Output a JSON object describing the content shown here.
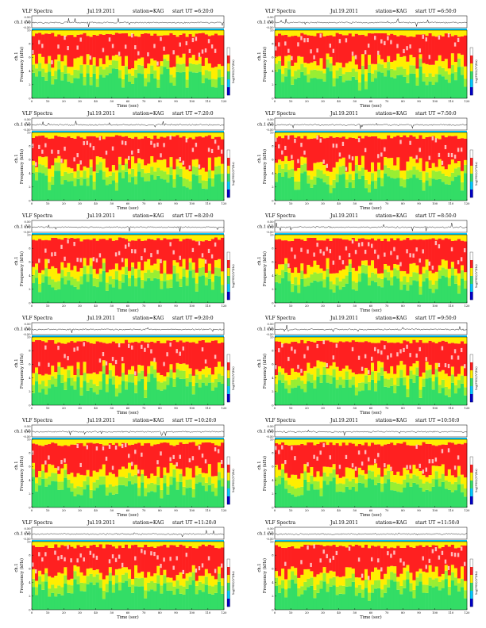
{
  "chart_data": [
    {
      "type": "heatmap",
      "title_left": "VLF Spectra",
      "date": "Jul.19.2011",
      "station": "station=KAG",
      "start_label": "start UT =6:20:0",
      "series_label": "ch.1 (V)",
      "ch_ticks": [
        "0.50",
        "0.00",
        "-0.50"
      ],
      "ylabel_top": "ch.1",
      "ylabel": "Frequency (kHz)",
      "xlabel": "Time (sec)",
      "colorbar_label": "log(PSD)(V²/Hz)",
      "xlim": [
        0,
        120
      ],
      "ylim": [
        0,
        10
      ],
      "x_ticks": [
        0,
        10,
        20,
        30,
        40,
        50,
        60,
        70,
        80,
        90,
        100,
        110,
        120
      ],
      "y_ticks": [
        0,
        2,
        4,
        6,
        8,
        10
      ]
    },
    {
      "type": "heatmap",
      "title_left": "VLF Spectra",
      "date": "Jul.19.2011",
      "station": "station=KAG",
      "start_label": "start UT =6:50:0",
      "series_label": "ch.1 (V)",
      "ch_ticks": [
        "0.50",
        "0.00",
        "-0.50"
      ],
      "ylabel_top": "ch.1",
      "ylabel": "Frequency (kHz)",
      "xlabel": "Time (sec)",
      "colorbar_label": "log(PSD)(V²/Hz)",
      "xlim": [
        0,
        120
      ],
      "ylim": [
        0,
        10
      ],
      "x_ticks": [
        0,
        10,
        20,
        30,
        40,
        50,
        60,
        70,
        80,
        90,
        100,
        110,
        120
      ],
      "y_ticks": [
        0,
        2,
        4,
        6,
        8,
        10
      ]
    },
    {
      "type": "heatmap",
      "title_left": "VLF Spectra",
      "date": "Jul.19.2011",
      "station": "station=KAG",
      "start_label": "start UT =7:20:0",
      "series_label": "ch.1 (V)",
      "ch_ticks": [
        "0.50",
        "0.00",
        "-0.50"
      ],
      "ylabel_top": "ch.1",
      "ylabel": "Frequency (kHz)",
      "xlabel": "Time (sec)",
      "colorbar_label": "log(PSD)(V²/Hz)",
      "xlim": [
        0,
        120
      ],
      "ylim": [
        0,
        10
      ],
      "x_ticks": [
        0,
        10,
        20,
        30,
        40,
        50,
        60,
        70,
        80,
        90,
        100,
        110,
        120
      ],
      "y_ticks": [
        0,
        2,
        4,
        6,
        8,
        10
      ]
    },
    {
      "type": "heatmap",
      "title_left": "VLF Spectra",
      "date": "Jul.19.2011",
      "station": "station=KAG",
      "start_label": "start UT =7:50:0",
      "series_label": "ch.1 (V)",
      "ch_ticks": [
        "0.50",
        "0.00",
        "-0.50"
      ],
      "ylabel_top": "ch.1",
      "ylabel": "Frequency (kHz)",
      "xlabel": "Time (sec)",
      "colorbar_label": "log(PSD)(V²/Hz)",
      "xlim": [
        0,
        120
      ],
      "ylim": [
        0,
        10
      ],
      "x_ticks": [
        0,
        10,
        20,
        30,
        40,
        50,
        60,
        70,
        80,
        90,
        100,
        110,
        120
      ],
      "y_ticks": [
        0,
        2,
        4,
        6,
        8,
        10
      ]
    },
    {
      "type": "heatmap",
      "title_left": "VLF Spectra",
      "date": "Jul.19.2011",
      "station": "station=KAG",
      "start_label": "start UT =8:20:0",
      "series_label": "ch.1 (V)",
      "ch_ticks": [
        "0.50",
        "0.00",
        "-0.50"
      ],
      "ylabel_top": "ch.1",
      "ylabel": "Frequency (kHz)",
      "xlabel": "Time (sec)",
      "colorbar_label": "log(PSD)(V²/Hz)",
      "xlim": [
        0,
        120
      ],
      "ylim": [
        0,
        10
      ],
      "x_ticks": [
        0,
        10,
        20,
        30,
        40,
        50,
        60,
        70,
        80,
        90,
        100,
        110,
        120
      ],
      "y_ticks": [
        0,
        2,
        4,
        6,
        8,
        10
      ]
    },
    {
      "type": "heatmap",
      "title_left": "VLF Spectra",
      "date": "Jul.19.2011",
      "station": "station=KAG",
      "start_label": "start UT =8:50:0",
      "series_label": "ch.1 (V)",
      "ch_ticks": [
        "0.50",
        "0.00",
        "-0.50"
      ],
      "ylabel_top": "ch.1",
      "ylabel": "Frequency (kHz)",
      "xlabel": "Time (sec)",
      "colorbar_label": "log(PSD)(V²/Hz)",
      "xlim": [
        0,
        120
      ],
      "ylim": [
        0,
        10
      ],
      "x_ticks": [
        0,
        10,
        20,
        30,
        40,
        50,
        60,
        70,
        80,
        90,
        100,
        110,
        120
      ],
      "y_ticks": [
        0,
        2,
        4,
        6,
        8,
        10
      ]
    },
    {
      "type": "heatmap",
      "title_left": "VLF Spectra",
      "date": "Jul.19.2011",
      "station": "station=KAG",
      "start_label": "start UT =9:20:0",
      "series_label": "ch.1 (V)",
      "ch_ticks": [
        "0.50",
        "0.00",
        "-0.50"
      ],
      "ylabel_top": "ch.1",
      "ylabel": "Frequency (kHz)",
      "xlabel": "Time (sec)",
      "colorbar_label": "log(PSD)(V²/Hz)",
      "xlim": [
        0,
        120
      ],
      "ylim": [
        0,
        10
      ],
      "x_ticks": [
        0,
        10,
        20,
        30,
        40,
        50,
        60,
        70,
        80,
        90,
        100,
        110,
        120
      ],
      "y_ticks": [
        0,
        2,
        4,
        6,
        8,
        10
      ]
    },
    {
      "type": "heatmap",
      "title_left": "VLF Spectra",
      "date": "Jul.19.2011",
      "station": "station=KAG",
      "start_label": "start UT =9:50:0",
      "series_label": "ch.1 (V)",
      "ch_ticks": [
        "0.50",
        "0.00",
        "-0.50"
      ],
      "ylabel_top": "ch.1",
      "ylabel": "Frequency (kHz)",
      "xlabel": "Time (sec)",
      "colorbar_label": "log(PSD)(V²/Hz)",
      "xlim": [
        0,
        120
      ],
      "ylim": [
        0,
        10
      ],
      "x_ticks": [
        0,
        10,
        20,
        30,
        40,
        50,
        60,
        70,
        80,
        90,
        100,
        110,
        120
      ],
      "y_ticks": [
        0,
        2,
        4,
        6,
        8,
        10
      ]
    },
    {
      "type": "heatmap",
      "title_left": "VLF Spectra",
      "date": "Jul.19.2011",
      "station": "station=KAG",
      "start_label": "start UT =10:20:0",
      "series_label": "ch.1 (V)",
      "ch_ticks": [
        "0.50",
        "0.00",
        "-0.50"
      ],
      "ylabel_top": "ch.1",
      "ylabel": "Frequency (kHz)",
      "xlabel": "Time (sec)",
      "colorbar_label": "log(PSD)(V²/Hz)",
      "xlim": [
        0,
        120
      ],
      "ylim": [
        0,
        10
      ],
      "x_ticks": [
        0,
        10,
        20,
        30,
        40,
        50,
        60,
        70,
        80,
        90,
        100,
        110,
        120
      ],
      "y_ticks": [
        0,
        2,
        4,
        6,
        8,
        10
      ]
    },
    {
      "type": "heatmap",
      "title_left": "VLF Spectra",
      "date": "Jul.19.2011",
      "station": "station=KAG",
      "start_label": "start UT =10:50:0",
      "series_label": "ch.1 (V)",
      "ch_ticks": [
        "0.50",
        "0.00",
        "-0.50"
      ],
      "ylabel_top": "ch.1",
      "ylabel": "Frequency (kHz)",
      "xlabel": "Time (sec)",
      "colorbar_label": "log(PSD)(V²/Hz)",
      "xlim": [
        0,
        120
      ],
      "ylim": [
        0,
        10
      ],
      "x_ticks": [
        0,
        10,
        20,
        30,
        40,
        50,
        60,
        70,
        80,
        90,
        100,
        110,
        120
      ],
      "y_ticks": [
        0,
        2,
        4,
        6,
        8,
        10
      ]
    },
    {
      "type": "heatmap",
      "title_left": "VLF Spectra",
      "date": "Jul.19.2011",
      "station": "station=KAG",
      "start_label": "start UT =11:20:0",
      "series_label": "ch.1 (V)",
      "ch_ticks": [
        "0.50",
        "0.00",
        "-0.50"
      ],
      "ylabel_top": "ch.1",
      "ylabel": "Frequency (kHz)",
      "xlabel": "Time (sec)",
      "colorbar_label": "log(PSD)(V²/Hz)",
      "xlim": [
        0,
        120
      ],
      "ylim": [
        0,
        10
      ],
      "x_ticks": [
        0,
        10,
        20,
        30,
        40,
        50,
        60,
        70,
        80,
        90,
        100,
        110,
        120
      ],
      "y_ticks": [
        0,
        2,
        4,
        6,
        8,
        10
      ]
    },
    {
      "type": "heatmap",
      "title_left": "VLF Spectra",
      "date": "Jul.19.2011",
      "station": "station=KAG",
      "start_label": "start UT =11:50:0",
      "series_label": "ch.1 (V)",
      "ch_ticks": [
        "0.50",
        "0.00",
        "-0.50"
      ],
      "ylabel_top": "ch.1",
      "ylabel": "Frequency (kHz)",
      "xlabel": "Time (sec)",
      "colorbar_label": "log(PSD)(V²/Hz)",
      "xlim": [
        0,
        120
      ],
      "ylim": [
        0,
        10
      ],
      "x_ticks": [
        0,
        10,
        20,
        30,
        40,
        50,
        60,
        70,
        80,
        90,
        100,
        110,
        120
      ],
      "y_ticks": [
        0,
        2,
        4,
        6,
        8,
        10
      ]
    }
  ],
  "colors": {
    "low": "#0000c8",
    "mid_low": "#00c8ff",
    "mid": "#33dd66",
    "mid_high": "#ffee00",
    "high": "#ff2020",
    "peak": "#ffffff"
  }
}
